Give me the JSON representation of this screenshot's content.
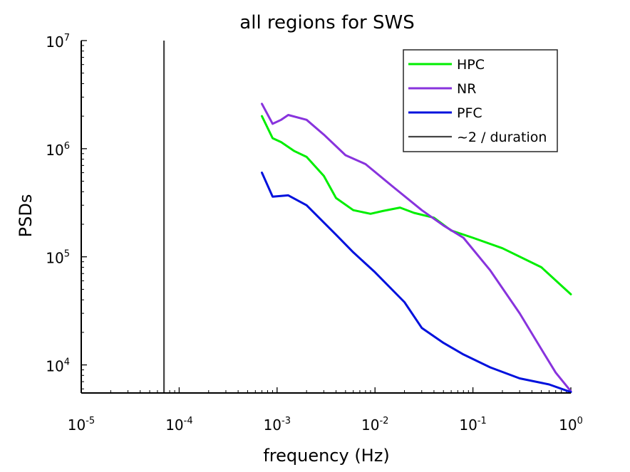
{
  "chart_data": {
    "type": "line",
    "title": "all regions for SWS",
    "xlabel": "frequency (Hz)",
    "ylabel": "PSDs",
    "xscale": "log",
    "yscale": "log",
    "xlim": [
      1e-05,
      1
    ],
    "ylim": [
      5500,
      10000000
    ],
    "x_ticks": [
      {
        "base": "10",
        "exp": "-5",
        "value": 1e-05
      },
      {
        "base": "10",
        "exp": "-4",
        "value": 0.0001
      },
      {
        "base": "10",
        "exp": "-3",
        "value": 0.001
      },
      {
        "base": "10",
        "exp": "-2",
        "value": 0.01
      },
      {
        "base": "10",
        "exp": "-1",
        "value": 0.1
      },
      {
        "base": "10",
        "exp": "0",
        "value": 1
      }
    ],
    "y_ticks": [
      {
        "base": "10",
        "exp": "4",
        "value": 10000
      },
      {
        "base": "10",
        "exp": "5",
        "value": 100000
      },
      {
        "base": "10",
        "exp": "6",
        "value": 1000000
      },
      {
        "base": "10",
        "exp": "7",
        "value": 10000000
      }
    ],
    "grid": false,
    "legend": "top-right",
    "vline": {
      "name": "~2 / duration",
      "x": 7e-05,
      "color": "#444444"
    },
    "series": [
      {
        "name": "HPC",
        "color": "#00ee00",
        "points": [
          [
            0.0007,
            2000000
          ],
          [
            0.0009,
            1250000
          ],
          [
            0.0011,
            1150000
          ],
          [
            0.0015,
            950000
          ],
          [
            0.002,
            840000
          ],
          [
            0.003,
            560000
          ],
          [
            0.004,
            350000
          ],
          [
            0.006,
            270000
          ],
          [
            0.009,
            250000
          ],
          [
            0.012,
            265000
          ],
          [
            0.018,
            285000
          ],
          [
            0.025,
            255000
          ],
          [
            0.04,
            230000
          ],
          [
            0.06,
            175000
          ],
          [
            0.1,
            150000
          ],
          [
            0.2,
            120000
          ],
          [
            0.5,
            80000
          ],
          [
            1.0,
            45000
          ]
        ]
      },
      {
        "name": "NR",
        "color": "#8833dd",
        "points": [
          [
            0.0007,
            2600000
          ],
          [
            0.0009,
            1700000
          ],
          [
            0.0011,
            1850000
          ],
          [
            0.0013,
            2050000
          ],
          [
            0.002,
            1850000
          ],
          [
            0.003,
            1350000
          ],
          [
            0.005,
            870000
          ],
          [
            0.008,
            720000
          ],
          [
            0.015,
            450000
          ],
          [
            0.03,
            270000
          ],
          [
            0.05,
            195000
          ],
          [
            0.08,
            150000
          ],
          [
            0.15,
            75000
          ],
          [
            0.3,
            30000
          ],
          [
            0.5,
            14000
          ],
          [
            0.7,
            8500
          ],
          [
            1.0,
            5700
          ]
        ]
      },
      {
        "name": "PFC",
        "color": "#0011dd",
        "points": [
          [
            0.0007,
            600000
          ],
          [
            0.0009,
            360000
          ],
          [
            0.0013,
            370000
          ],
          [
            0.002,
            300000
          ],
          [
            0.004,
            160000
          ],
          [
            0.006,
            110000
          ],
          [
            0.01,
            72000
          ],
          [
            0.02,
            38000
          ],
          [
            0.03,
            22000
          ],
          [
            0.05,
            16000
          ],
          [
            0.08,
            12500
          ],
          [
            0.15,
            9500
          ],
          [
            0.3,
            7500
          ],
          [
            0.6,
            6600
          ],
          [
            1.0,
            5600
          ]
        ]
      }
    ]
  }
}
